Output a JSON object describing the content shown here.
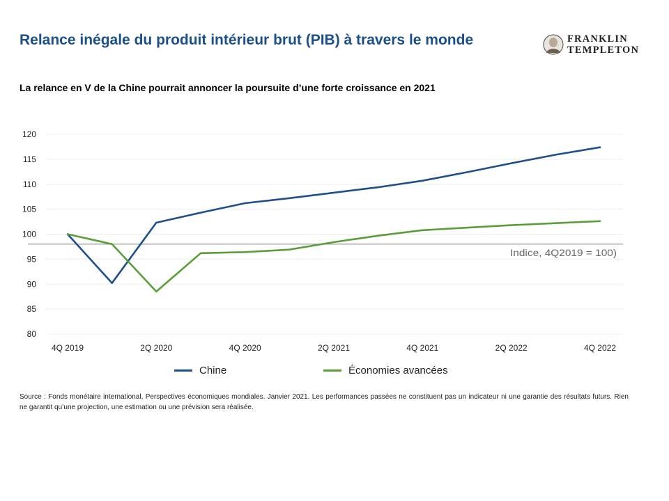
{
  "header": {
    "title": "Relance inégale du produit intérieur brut (PIB) à travers le monde",
    "subtitle": "La relance en V de la Chine pourrait annoncer la poursuite d’une forte croissance en 2021",
    "logo_line1": "FRANKLIN",
    "logo_line2": "TEMPLETON"
  },
  "footer": {
    "source": "Source : Fonds monétaire international, Perspectives économiques mondiales. Janvier 2021. Les performances passées ne constituent pas un indicateur ni une garantie des résultats futurs. Rien ne garantit qu’une projection, une estimation ou une prévision sera réalisée."
  },
  "colors": {
    "title": "#1b4f8a",
    "china": "#1d4f8c",
    "advanced": "#5a9e3a"
  },
  "chart_data": {
    "type": "line",
    "title": "",
    "xlabel": "",
    "ylabel": "",
    "x": [
      "4Q 2019",
      "1Q 2020",
      "2Q 2020",
      "3Q 2020",
      "4Q 2020",
      "1Q 2021",
      "2Q 2021",
      "3Q 2021",
      "4Q 2021",
      "1Q 2022",
      "2Q 2022",
      "3Q 2022",
      "4Q 2022"
    ],
    "x_tick_labels": [
      "4Q 2019",
      "",
      "2Q 2020",
      "",
      "4Q 2020",
      "",
      "2Q 2021",
      "",
      "4Q 2021",
      "",
      "2Q 2022",
      "",
      "4Q 2022"
    ],
    "ylim": [
      80,
      120
    ],
    "yticks": [
      80,
      85,
      90,
      95,
      100,
      105,
      110,
      115,
      120
    ],
    "grid": true,
    "legend": "bottom",
    "series": [
      {
        "name": "Chine",
        "values": [
          100,
          90.2,
          102.3,
          104.3,
          106.2,
          107.2,
          108.3,
          109.4,
          110.7,
          112.4,
          114.2,
          115.9,
          117.4
        ]
      },
      {
        "name": "Économies avancées",
        "values": [
          100,
          98.0,
          88.5,
          96.2,
          96.4,
          96.9,
          98.4,
          99.7,
          100.8,
          101.3,
          101.8,
          102.2,
          102.6
        ]
      }
    ],
    "reference_line": {
      "value": 98,
      "label": "Indice, 4Q2019 = 100)"
    }
  }
}
